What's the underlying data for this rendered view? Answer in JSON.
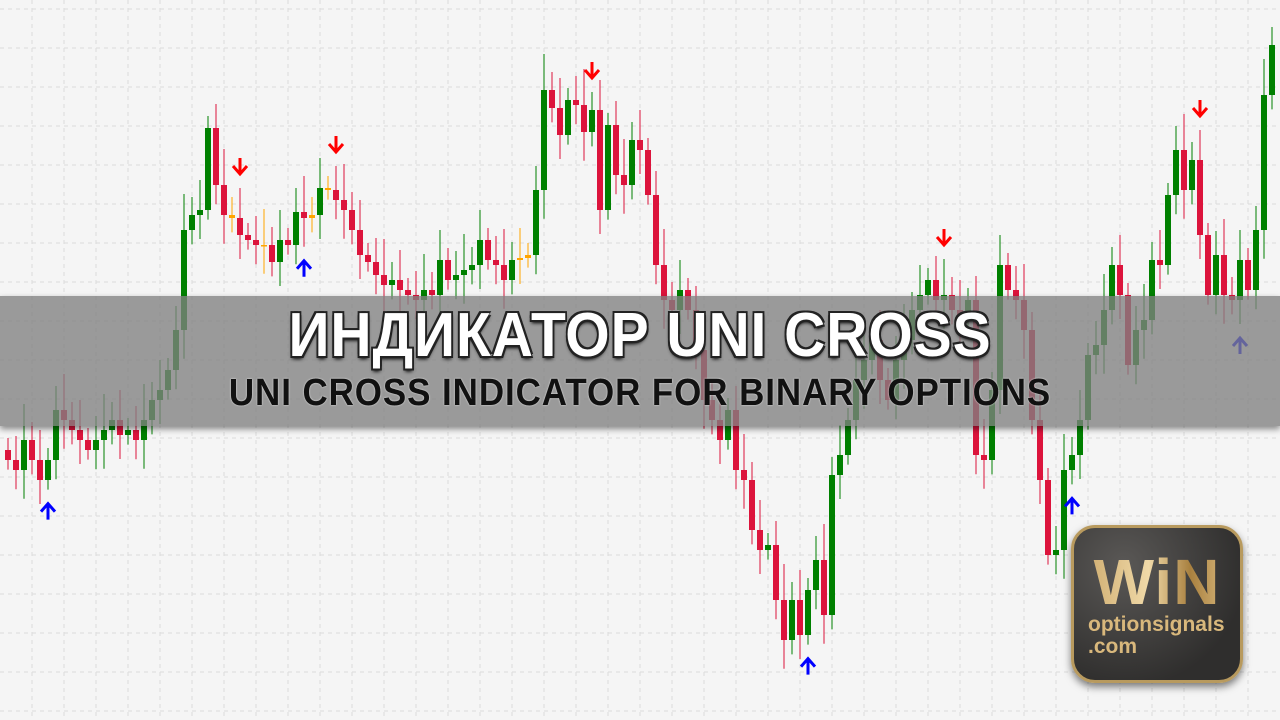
{
  "chart_data": {
    "type": "candlestick",
    "grid": true,
    "ylim": [
      0,
      72
    ],
    "first_open": 27,
    "closes": [
      26,
      25,
      28,
      26,
      24,
      26,
      31,
      30,
      29,
      28,
      27,
      28,
      29,
      30,
      28.5,
      29,
      28,
      30,
      32,
      33,
      35,
      39,
      49,
      50.5,
      51,
      59.2,
      53.5,
      50.5,
      50.2,
      48.5,
      48,
      47.5,
      47.5,
      45.8,
      48,
      47.5,
      50.8,
      50.2,
      50.5,
      53.2,
      53,
      52,
      51,
      49,
      46.5,
      45.8,
      44.5,
      43.5,
      44,
      43,
      42.5,
      42,
      43,
      42.5,
      46,
      44,
      44.5,
      45,
      45.5,
      48,
      46,
      45.5,
      44,
      46,
      46.2,
      46.5,
      53,
      63,
      61.2,
      58.5,
      62,
      61.5,
      58.8,
      61,
      51,
      59.5,
      54.5,
      53.5,
      58,
      57,
      52.5,
      45.5,
      42,
      41,
      43,
      41,
      37,
      32,
      30,
      28,
      31,
      25,
      24,
      19,
      17,
      17.5,
      12,
      8,
      12,
      8.5,
      13,
      16,
      10.5,
      24.5,
      26.5,
      30,
      34,
      36,
      38,
      34,
      32,
      36,
      38,
      41,
      42.5,
      44,
      42,
      42.5,
      41,
      40,
      42,
      26.5,
      26,
      33,
      45.5,
      43,
      42,
      39,
      30,
      24,
      16.5,
      17,
      25,
      26.5,
      30,
      36.5,
      37.5,
      41,
      45.5,
      42.5,
      35.5,
      39,
      40,
      46,
      45.5,
      52.5,
      57,
      53,
      56,
      48.5,
      42.5,
      46.5,
      42.5,
      42,
      46,
      43,
      49,
      62.5,
      67.5
    ],
    "signals": [
      {
        "index": 5,
        "direction": "up"
      },
      {
        "index": 29,
        "direction": "down"
      },
      {
        "index": 37,
        "direction": "up"
      },
      {
        "index": 41,
        "direction": "down"
      },
      {
        "index": 73,
        "direction": "down"
      },
      {
        "index": 100,
        "direction": "up"
      },
      {
        "index": 117,
        "direction": "down"
      },
      {
        "index": 133,
        "direction": "up"
      },
      {
        "index": 149,
        "direction": "down"
      },
      {
        "index": 154,
        "direction": "up"
      }
    ],
    "colors": {
      "bull": "#008000",
      "bear": "#dc143c",
      "doji": "#ffa500",
      "up_arrow": "#0000ff",
      "down_arrow": "#ff0000",
      "background": "#f5f5f5",
      "grid": "#dcdcdc"
    }
  },
  "banner": {
    "title": "ИНДИКАТОР UNI CROSS",
    "subtitle": "UNI CROSS INDICATOR FOR BINARY OPTIONS"
  },
  "logo": {
    "main": "WiN",
    "line1": "optionsignals",
    "line2": ".com"
  }
}
